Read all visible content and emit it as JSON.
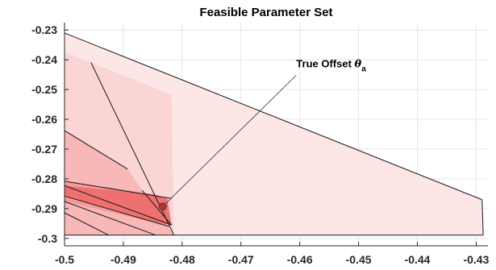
{
  "chart_data": {
    "type": "area",
    "title": "Feasible Parameter Set",
    "xlabel": "",
    "ylabel": "",
    "xlim": [
      -0.5,
      -0.428
    ],
    "ylim": [
      -0.3025,
      -0.2275
    ],
    "grid": true,
    "legend": "none",
    "x_ticks": [
      -0.5,
      -0.49,
      -0.48,
      -0.47,
      -0.46,
      -0.45,
      -0.44,
      -0.43
    ],
    "x_tick_labels": [
      "-0.5",
      "-0.49",
      "-0.48",
      "-0.47",
      "-0.46",
      "-0.45",
      "-0.44",
      "-0.43"
    ],
    "y_ticks": [
      -0.23,
      -0.24,
      -0.25,
      -0.26,
      -0.27,
      -0.28,
      -0.29,
      -0.3
    ],
    "y_tick_labels": [
      "-0.23",
      "-0.24",
      "-0.25",
      "-0.26",
      "-0.27",
      "-0.28",
      "-0.29",
      "-0.3"
    ],
    "regions": [
      {
        "fill": "#fde6e6",
        "opacity": 1,
        "points": [
          [
            -0.5,
            -0.231
          ],
          [
            -0.429,
            -0.287
          ],
          [
            -0.4288,
            -0.2989
          ],
          [
            -0.5,
            -0.2989
          ]
        ]
      },
      {
        "fill": "#fbd4d4",
        "opacity": 1,
        "points": [
          [
            -0.4955,
            -0.2409
          ],
          [
            -0.4818,
            -0.2517
          ],
          [
            -0.4814,
            -0.2989
          ],
          [
            -0.5,
            -0.2989
          ],
          [
            -0.5,
            -0.2375
          ]
        ]
      },
      {
        "fill": "#f8b8b8",
        "opacity": 1,
        "points": [
          [
            -0.5,
            -0.2638
          ],
          [
            -0.4893,
            -0.2767
          ],
          [
            -0.4814,
            -0.2989
          ],
          [
            -0.5,
            -0.2989
          ]
        ]
      },
      {
        "fill": "#f49a9a",
        "opacity": 1,
        "points": [
          [
            -0.5,
            -0.2808
          ],
          [
            -0.4848,
            -0.2852
          ],
          [
            -0.4825,
            -0.2865
          ],
          [
            -0.4818,
            -0.2955
          ],
          [
            -0.4835,
            -0.2952
          ],
          [
            -0.5,
            -0.2876
          ]
        ]
      },
      {
        "fill": "#ee7070",
        "opacity": 1,
        "points": [
          [
            -0.5,
            -0.2823
          ],
          [
            -0.4848,
            -0.2852
          ],
          [
            -0.4826,
            -0.2866
          ],
          [
            -0.4818,
            -0.2955
          ],
          [
            -0.4865,
            -0.2937
          ],
          [
            -0.5,
            -0.2858
          ]
        ]
      }
    ],
    "boundary_lines": [
      [
        [
          -0.5,
          -0.231
        ],
        [
          -0.429,
          -0.287
        ]
      ],
      [
        [
          -0.429,
          -0.287
        ],
        [
          -0.4288,
          -0.2989
        ]
      ],
      [
        [
          -0.5,
          -0.2989
        ],
        [
          -0.4288,
          -0.2989
        ]
      ],
      [
        [
          -0.5,
          -0.231
        ],
        [
          -0.5,
          -0.2989
        ]
      ],
      [
        [
          -0.4955,
          -0.2409
        ],
        [
          -0.4814,
          -0.2989
        ]
      ],
      [
        [
          -0.5,
          -0.2638
        ],
        [
          -0.4893,
          -0.2767
        ]
      ],
      [
        [
          -0.5,
          -0.2808
        ],
        [
          -0.4818,
          -0.2866
        ]
      ],
      [
        [
          -0.5,
          -0.2823
        ],
        [
          -0.4818,
          -0.2955
        ]
      ],
      [
        [
          -0.4868,
          -0.2839
        ],
        [
          -0.4818,
          -0.2955
        ]
      ],
      [
        [
          -0.5,
          -0.2858
        ],
        [
          -0.4822,
          -0.296
        ]
      ],
      [
        [
          -0.5,
          -0.2876
        ],
        [
          -0.4845,
          -0.2989
        ]
      ],
      [
        [
          -0.5,
          -0.2914
        ],
        [
          -0.4925,
          -0.2989
        ]
      ]
    ],
    "true_offset_point": {
      "x": -0.4833,
      "y": -0.2893,
      "color": "#a23a3a"
    },
    "annotation": {
      "text": "True Offset ",
      "symbol": "θ",
      "subscript": "a",
      "arrow_from": {
        "x": -0.4606,
        "y": -0.2452
      },
      "arrow_to": {
        "x": -0.4833,
        "y": -0.2893
      }
    }
  }
}
